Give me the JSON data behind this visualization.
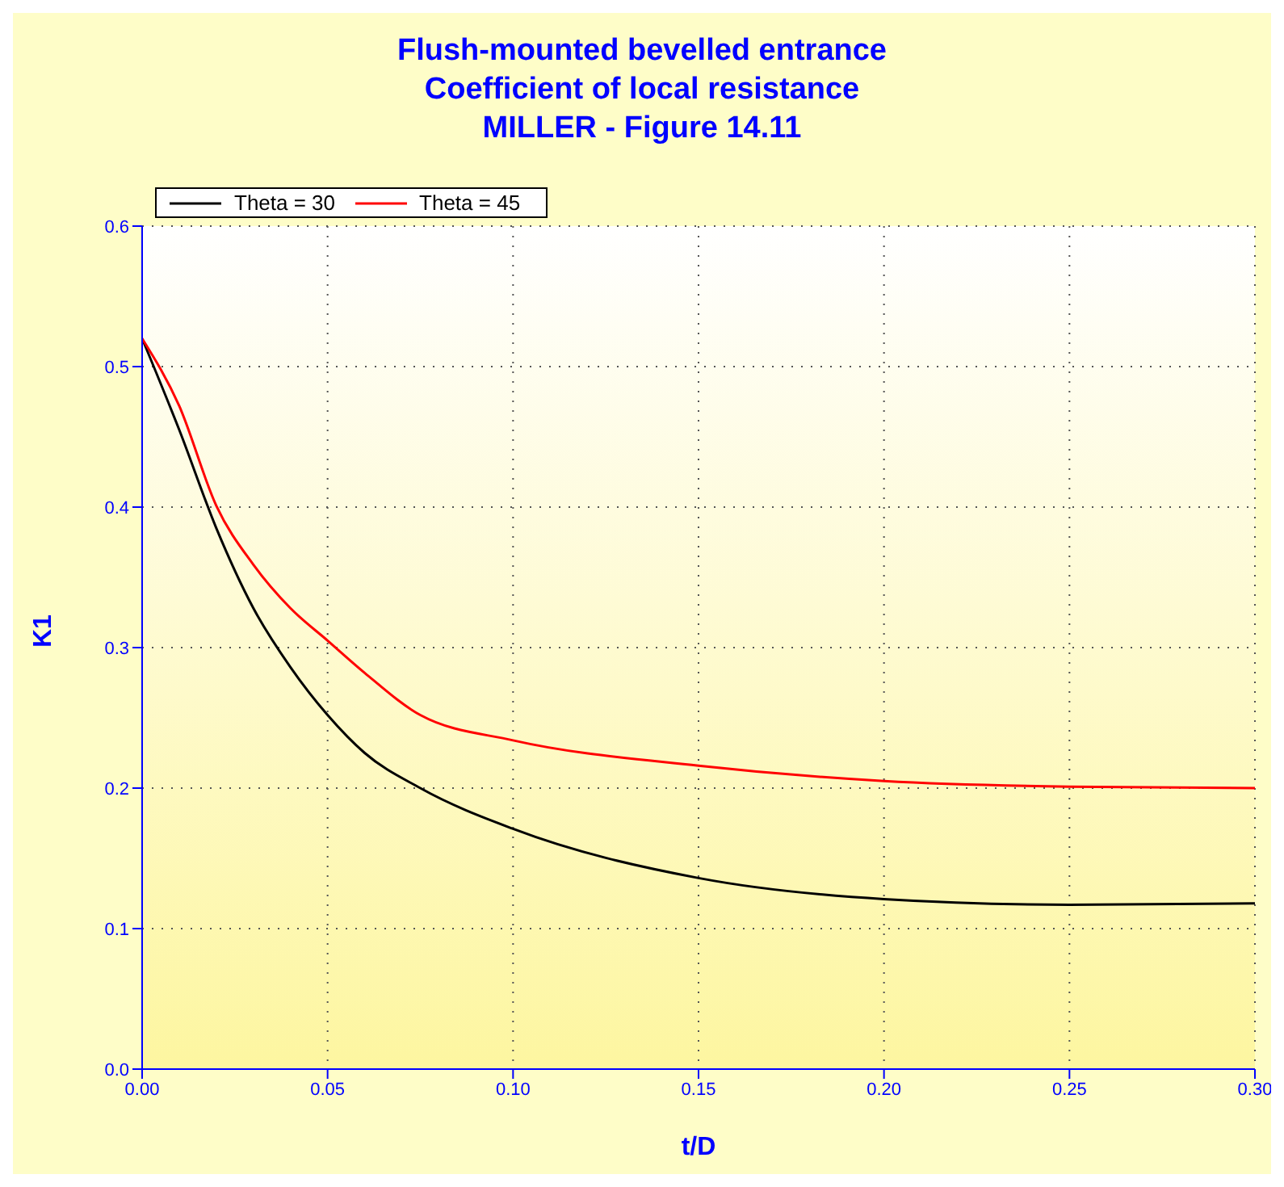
{
  "chart_data": {
    "type": "line",
    "title": "Flush-mounted bevelled entrance\nCoefficient of local resistance\nMILLER - Figure 14.11",
    "xlabel": "t/D",
    "ylabel": "K1",
    "x": [
      0,
      0.01,
      0.02,
      0.03,
      0.04,
      0.05,
      0.06,
      0.075,
      0.1,
      0.15,
      0.2,
      0.25,
      0.3
    ],
    "series": [
      {
        "name": "Theta = 30",
        "color": "#000000",
        "values": [
          0.52,
          0.455,
          0.385,
          0.328,
          0.286,
          0.252,
          0.225,
          0.2,
          0.171,
          0.136,
          0.121,
          0.117,
          0.118
        ]
      },
      {
        "name": "Theta = 45",
        "color": "#ff0000",
        "values": [
          0.52,
          0.472,
          0.401,
          0.359,
          0.328,
          0.305,
          0.282,
          0.252,
          0.234,
          0.216,
          0.205,
          0.201,
          0.2
        ]
      }
    ],
    "xlim": [
      0,
      0.3
    ],
    "xticks": [
      {
        "value": 0,
        "label": "0.00"
      },
      {
        "value": 0.05,
        "label": "0.05"
      },
      {
        "value": 0.1,
        "label": "0.10"
      },
      {
        "value": 0.15,
        "label": "0.15"
      },
      {
        "value": 0.2,
        "label": "0.20"
      },
      {
        "value": 0.25,
        "label": "0.25"
      },
      {
        "value": 0.3,
        "label": "0.30"
      }
    ],
    "ylim": [
      0,
      0.6
    ],
    "yticks": [
      {
        "value": 0,
        "label": "0.0"
      },
      {
        "value": 0.1,
        "label": "0.1"
      },
      {
        "value": 0.2,
        "label": "0.2"
      },
      {
        "value": 0.3,
        "label": "0.3"
      },
      {
        "value": 0.4,
        "label": "0.4"
      },
      {
        "value": 0.5,
        "label": "0.5"
      },
      {
        "value": 0.6,
        "label": "0.6"
      }
    ],
    "grid": true,
    "legend": "top left",
    "marker": "none",
    "line_style": "solid"
  }
}
